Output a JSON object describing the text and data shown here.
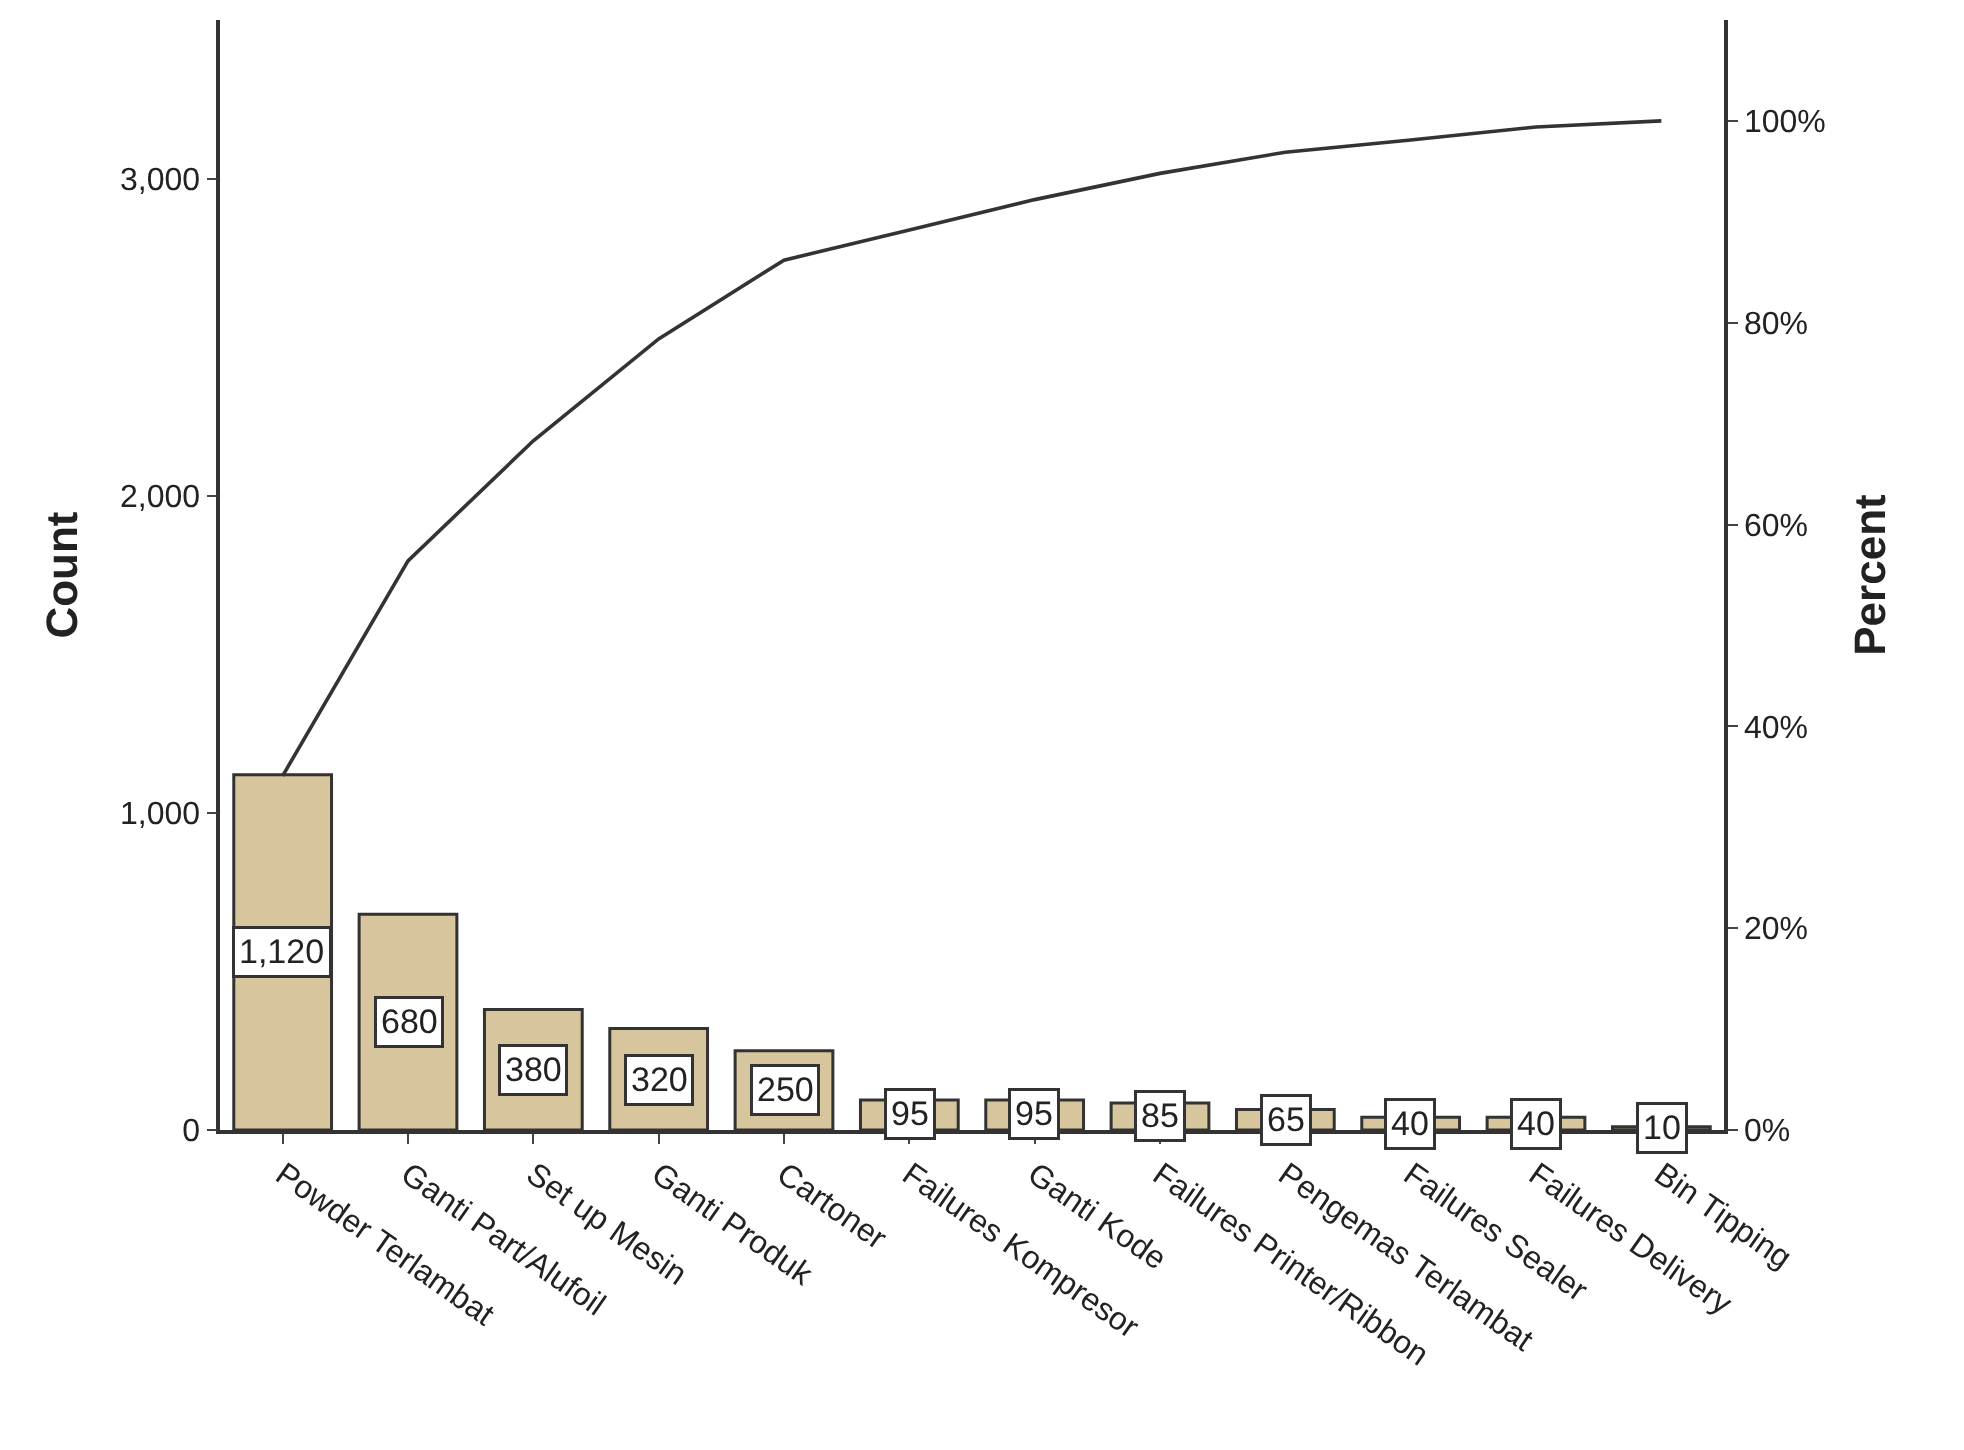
{
  "chart_data": {
    "type": "bar",
    "xlabel": null,
    "ylabel": "Count",
    "y2label": "Percent",
    "categories": [
      "Powder Terlambat",
      "Ganti Part/Alufoil",
      "Set up Mesin",
      "Ganti Produk",
      "Cartoner",
      "Failures Kompresor",
      "Ganti Kode",
      "Failures Printer/Ribbon",
      "Pengemas Terlambat",
      "Failures Sealer",
      "Failures Delivery",
      "Bin Tipping"
    ],
    "series": [
      {
        "color": "#d6c59d",
        "values": [
          1120,
          680,
          380,
          320,
          250,
          95,
          95,
          85,
          65,
          40,
          40,
          10
        ],
        "value_labels": [
          "1,120",
          "680",
          "380",
          "320",
          "250",
          "95",
          "95",
          "85",
          "65",
          "40",
          "40",
          "10"
        ]
      },
      {
        "type": "line",
        "axis": "y2",
        "color": "#333333",
        "values": [
          35.1,
          56.4,
          68.3,
          78.4,
          86.2,
          89.2,
          92.2,
          94.8,
          96.9,
          98.1,
          99.4,
          100
        ]
      }
    ],
    "ylim": [
      0,
      3500
    ],
    "yticks": [
      0,
      {
        "value": 1000,
        "label": "1,000"
      },
      {
        "value": 2000,
        "label": "2,000"
      },
      {
        "value": 3000,
        "label": "3,000"
      }
    ],
    "y2lim": [
      0,
      110
    ],
    "y2ticks": [
      {
        "value": 0,
        "label": "0%"
      },
      {
        "value": 20,
        "label": "20%"
      },
      {
        "value": 40,
        "label": "40%"
      },
      {
        "value": 60,
        "label": "60%"
      },
      {
        "value": 80,
        "label": "80%"
      },
      {
        "value": 100,
        "label": "100%"
      }
    ],
    "marker": "none",
    "line_style": "solid"
  }
}
